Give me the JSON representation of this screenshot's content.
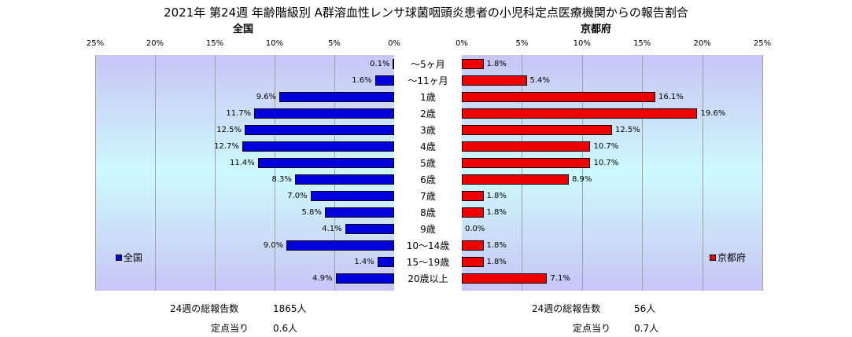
{
  "title": "2021年 第24週 年齢階級別 A群溶血性レンサ球菌咽頭炎患者の小児科定点医療機関からの報告割合",
  "left_subtitle": "全国",
  "right_subtitle": "京都府",
  "colors": {
    "national": "#0000dd",
    "kyoto": "#ee0000",
    "plot_bg_edge": "#c6c6f8",
    "plot_bg_center": "#ccfafe"
  },
  "chart_data": {
    "type": "bar",
    "orientation": "horizontal",
    "categories": [
      "〜5ヶ月",
      "〜11ヶ月",
      "1歳",
      "2歳",
      "3歳",
      "4歳",
      "5歳",
      "6歳",
      "7歳",
      "8歳",
      "9歳",
      "10〜14歳",
      "15〜19歳",
      "20歳以上"
    ],
    "xlim": [
      0,
      25
    ],
    "ticks": [
      "0%",
      "5%",
      "10%",
      "15%",
      "20%",
      "25%"
    ],
    "series": [
      {
        "name": "全国",
        "values": [
          0.1,
          1.6,
          9.6,
          11.7,
          12.5,
          12.7,
          11.4,
          8.3,
          7.0,
          5.8,
          4.1,
          9.0,
          1.4,
          4.9
        ],
        "labels": [
          "0.1%",
          "1.6%",
          "9.6%",
          "11.7%",
          "12.5%",
          "12.7%",
          "11.4%",
          "8.3%",
          "7.0%",
          "5.8%",
          "4.1%",
          "9.0%",
          "1.4%",
          "4.9%"
        ]
      },
      {
        "name": "京都府",
        "values": [
          1.8,
          5.4,
          16.1,
          19.6,
          12.5,
          10.7,
          10.7,
          8.9,
          1.8,
          1.8,
          0.0,
          1.8,
          1.8,
          7.1
        ],
        "labels": [
          "1.8%",
          "5.4%",
          "16.1%",
          "19.6%",
          "12.5%",
          "10.7%",
          "10.7%",
          "8.9%",
          "1.8%",
          "1.8%",
          "0.0%",
          "1.8%",
          "1.8%",
          "7.1%"
        ]
      }
    ],
    "grid": true,
    "legend": [
      "lower-left",
      "lower-right"
    ]
  },
  "footer": {
    "left": {
      "weekly_label": "24週の総報告数",
      "weekly_value": "1865人",
      "per_label": "定点当り",
      "per_value": "0.6人"
    },
    "right": {
      "weekly_label": "24週の総報告数",
      "weekly_value": "56人",
      "per_label": "定点当り",
      "per_value": "0.7人"
    }
  }
}
